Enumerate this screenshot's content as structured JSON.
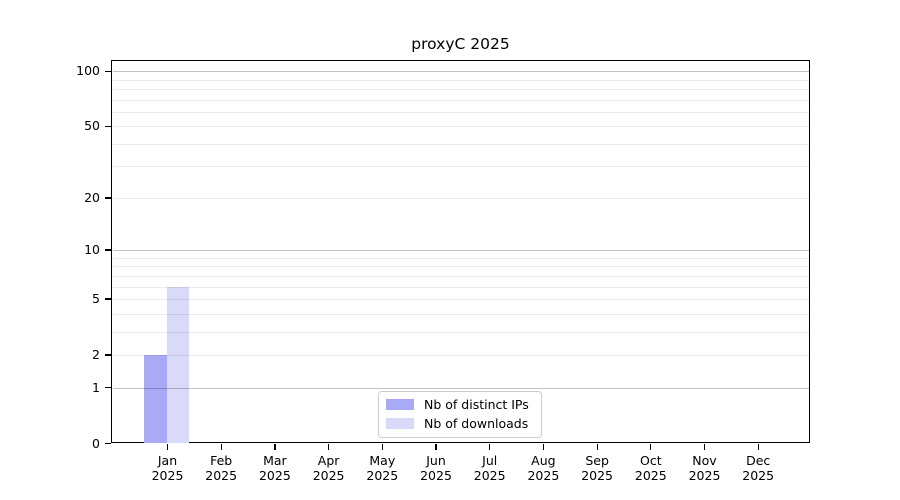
{
  "chart_data": {
    "type": "bar",
    "title": "proxyC 2025",
    "categories": [
      {
        "month": "Jan",
        "year": "2025"
      },
      {
        "month": "Feb",
        "year": "2025"
      },
      {
        "month": "Mar",
        "year": "2025"
      },
      {
        "month": "Apr",
        "year": "2025"
      },
      {
        "month": "May",
        "year": "2025"
      },
      {
        "month": "Jun",
        "year": "2025"
      },
      {
        "month": "Jul",
        "year": "2025"
      },
      {
        "month": "Aug",
        "year": "2025"
      },
      {
        "month": "Sep",
        "year": "2025"
      },
      {
        "month": "Oct",
        "year": "2025"
      },
      {
        "month": "Nov",
        "year": "2025"
      },
      {
        "month": "Dec",
        "year": "2025"
      }
    ],
    "series": [
      {
        "name": "Nb of distinct IPs",
        "color": "#a9a9f6",
        "values": [
          2,
          0,
          0,
          0,
          0,
          0,
          0,
          0,
          0,
          0,
          0,
          0
        ]
      },
      {
        "name": "Nb of downloads",
        "color": "#d9d9f9",
        "values": [
          6,
          0,
          0,
          0,
          0,
          0,
          0,
          0,
          0,
          0,
          0,
          0
        ]
      }
    ],
    "xlabel": "",
    "ylabel": "",
    "yscale": "log1p",
    "ylim": [
      0,
      115
    ],
    "yticks": [
      0,
      1,
      2,
      5,
      10,
      20,
      50,
      100
    ],
    "major_gridlines": [
      1,
      10,
      100
    ],
    "minor_gridlines": [
      2,
      3,
      4,
      5,
      6,
      7,
      8,
      9,
      20,
      30,
      40,
      50,
      60,
      70,
      80,
      90
    ],
    "grid": true,
    "legend_position": "lower center",
    "colors": {
      "bar_distinct_ips": "#a9a9f6",
      "bar_downloads": "#d9d9f9",
      "major_grid": "#c3c3c3",
      "minor_grid": "#ebebeb",
      "spine": "#000000",
      "background": "#ffffff",
      "legend_border": "#cccccc",
      "text": "#000000"
    }
  }
}
